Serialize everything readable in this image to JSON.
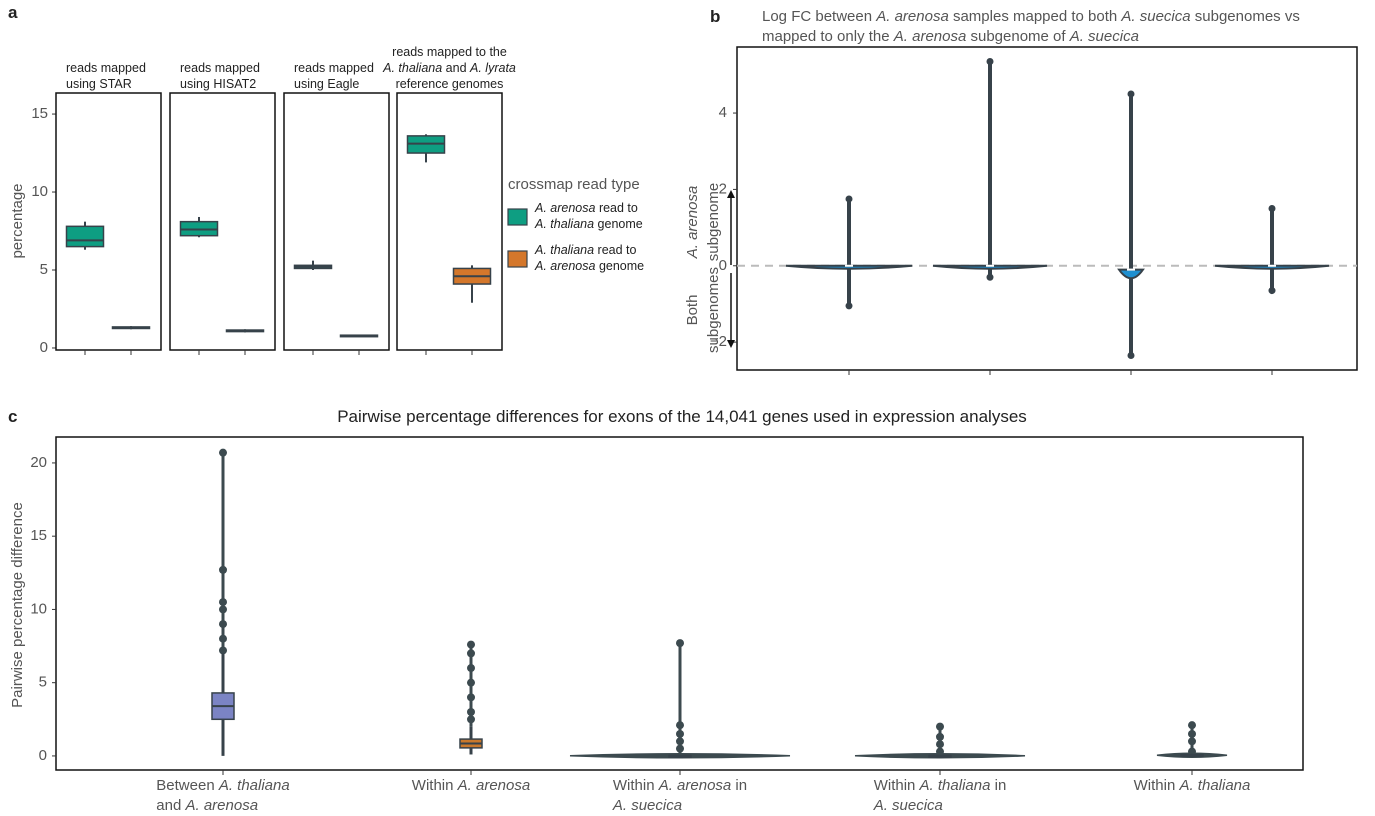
{
  "chart_data": [
    {
      "type": "box",
      "label": "a",
      "ylabel": "percentage",
      "ylim": [
        -0.13,
        16.35
      ],
      "yticks": [
        0,
        5,
        10,
        15
      ],
      "legend_title": "crossmap read type",
      "series": [
        {
          "name": [
            "A. arenosa read to",
            "A. thaliana genome"
          ],
          "color": "#0e9e82"
        },
        {
          "name": [
            "A. thaliana read to",
            "A. arenosa genome"
          ],
          "color": "#d4772b"
        }
      ],
      "facets": [
        {
          "title": [
            "reads mapped",
            "using STAR"
          ],
          "boxes": [
            [
              6.3,
              6.5,
              6.9,
              7.8,
              8.1
            ],
            [
              1.2,
              1.25,
              1.3,
              1.35,
              1.4
            ]
          ]
        },
        {
          "title": [
            "reads mapped",
            "using HISAT2"
          ],
          "boxes": [
            [
              7.1,
              7.2,
              7.6,
              8.1,
              8.4
            ],
            [
              1.0,
              1.05,
              1.1,
              1.15,
              1.2
            ]
          ]
        },
        {
          "title": [
            "reads mapped",
            "using Eagle"
          ],
          "boxes": [
            [
              5.0,
              5.1,
              5.2,
              5.3,
              5.6
            ],
            [
              0.7,
              0.75,
              0.8,
              0.82,
              0.85
            ]
          ]
        },
        {
          "title": [
            "reads mapped to the",
            "A. thaliana and A. lyrata",
            "reference genomes"
          ],
          "boxes": [
            [
              11.9,
              12.5,
              13.1,
              13.6,
              13.7
            ],
            [
              2.9,
              4.1,
              4.6,
              5.1,
              5.3
            ]
          ]
        }
      ]
    },
    {
      "type": "violin",
      "label": "b",
      "title": [
        "Log FC between A. arenosa samples mapped to both A. suecica subgenomes vs",
        "mapped to only the A. arenosa subgenome of A. suecica"
      ],
      "ylabel_up": [
        "A. arenosa",
        "subgenome"
      ],
      "ylabel_down": [
        "Both",
        "subgenomes"
      ],
      "ylim": [
        -2.73,
        5.73
      ],
      "yticks": [
        {
          "value": -2,
          "label": "−2"
        },
        0,
        2,
        4
      ],
      "hline": 0,
      "categories": [
        null,
        null,
        null,
        null
      ],
      "color": "#1e8fd0",
      "stats": [
        [
          -1.05,
          -0.05,
          0.0,
          0.05,
          1.75
        ],
        [
          -0.3,
          -0.05,
          0.0,
          0.05,
          5.35
        ],
        [
          -2.35,
          -0.4,
          -0.1,
          0.3,
          4.5
        ],
        [
          -0.65,
          -0.05,
          0.0,
          0.05,
          1.5
        ]
      ]
    },
    {
      "type": "box-violin",
      "label": "c",
      "title": "Pairwise percentage differences for exons of the 14,041 genes used in expression analyses",
      "ylabel": "Pairwise percentage difference",
      "ylim": [
        -0.96,
        21.77
      ],
      "yticks": [
        0,
        5,
        10,
        15,
        20
      ],
      "categories": [
        [
          "Between A. thaliana",
          "and A. arenosa"
        ],
        [
          "Within A. arenosa"
        ],
        [
          "Within A. arenosa in",
          "A. suecica"
        ],
        [
          "Within A. thaliana in",
          "A. suecica"
        ],
        [
          "Within A. thaliana"
        ]
      ],
      "colors": [
        "#7b84c4",
        "#c9782c",
        "#3c4a4f",
        "#3c4a4f",
        "#3c4a4f"
      ],
      "stats": [
        [
          0.0,
          2.5,
          3.4,
          4.3,
          7.0
        ],
        [
          0.1,
          0.55,
          0.85,
          1.15,
          2.0
        ],
        [
          0.0,
          0.0,
          0.01,
          0.02,
          0.05
        ],
        [
          0.0,
          0.0,
          0.01,
          0.02,
          0.05
        ],
        [
          0.0,
          0.02,
          0.05,
          0.08,
          0.15
        ]
      ],
      "outliers": [
        [
          7.2,
          8.0,
          9.0,
          10.0,
          10.5,
          12.7,
          20.7
        ],
        [
          2.5,
          3.0,
          4.0,
          5.0,
          6.0,
          7.0,
          7.6
        ],
        [
          0.5,
          1.0,
          1.5,
          2.1,
          7.7
        ],
        [
          0.3,
          0.8,
          1.3,
          2.0
        ],
        [
          0.3,
          1.0,
          1.5,
          2.1
        ]
      ]
    }
  ]
}
